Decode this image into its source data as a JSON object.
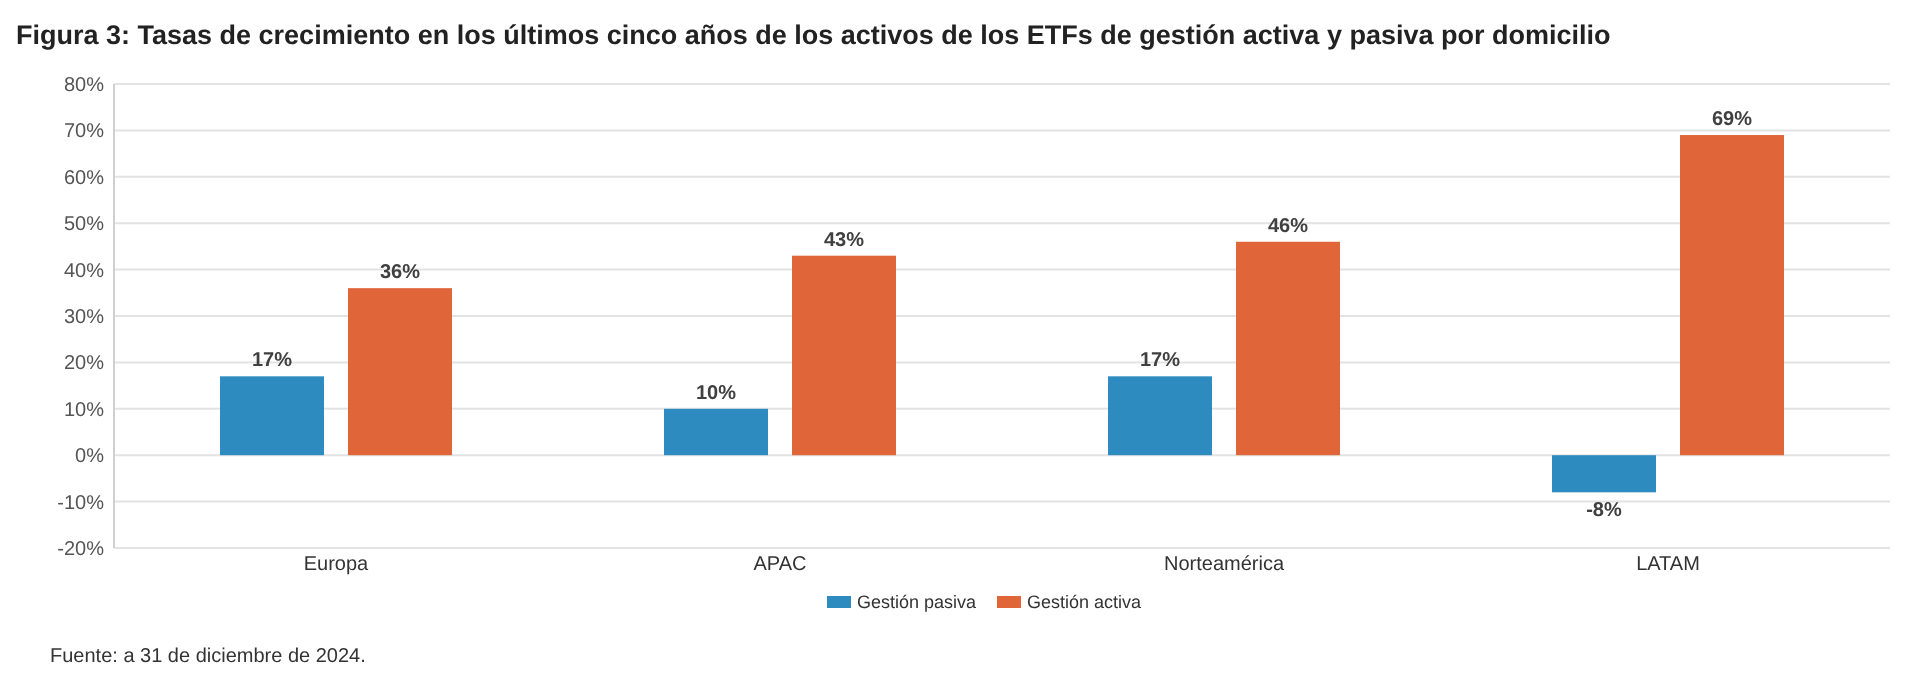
{
  "chart_data": {
    "type": "bar",
    "title": "Figura 3: Tasas de crecimiento en los últimos cinco años de los activos de los ETFs de gestión activa y pasiva por domicilio",
    "categories": [
      "Europa",
      "APAC",
      "Norteamérica",
      "LATAM"
    ],
    "series": [
      {
        "name": "Gestión pasiva",
        "color": "#2e8bc0",
        "values": [
          17,
          10,
          17,
          -8
        ],
        "value_labels": [
          "17%",
          "10%",
          "17%",
          "-8%"
        ]
      },
      {
        "name": "Gestión activa",
        "color": "#e0663a",
        "values": [
          36,
          43,
          46,
          69
        ],
        "value_labels": [
          "36%",
          "43%",
          "46%",
          "69%"
        ]
      }
    ],
    "ylim": [
      -20,
      80
    ],
    "yticks": [
      {
        "value": -20,
        "label": "-20%"
      },
      {
        "value": -10,
        "label": "-10%"
      },
      {
        "value": 0,
        "label": "0%"
      },
      {
        "value": 10,
        "label": "10%"
      },
      {
        "value": 20,
        "label": "20%"
      },
      {
        "value": 30,
        "label": "30%"
      },
      {
        "value": 40,
        "label": "40%"
      },
      {
        "value": 50,
        "label": "50%"
      },
      {
        "value": 60,
        "label": "60%"
      },
      {
        "value": 70,
        "label": "70%"
      },
      {
        "value": 80,
        "label": "80%"
      }
    ],
    "grid": "y",
    "legend": "bottom",
    "annotations": [
      "Fuente: a 31 de diciembre de 2024."
    ]
  }
}
